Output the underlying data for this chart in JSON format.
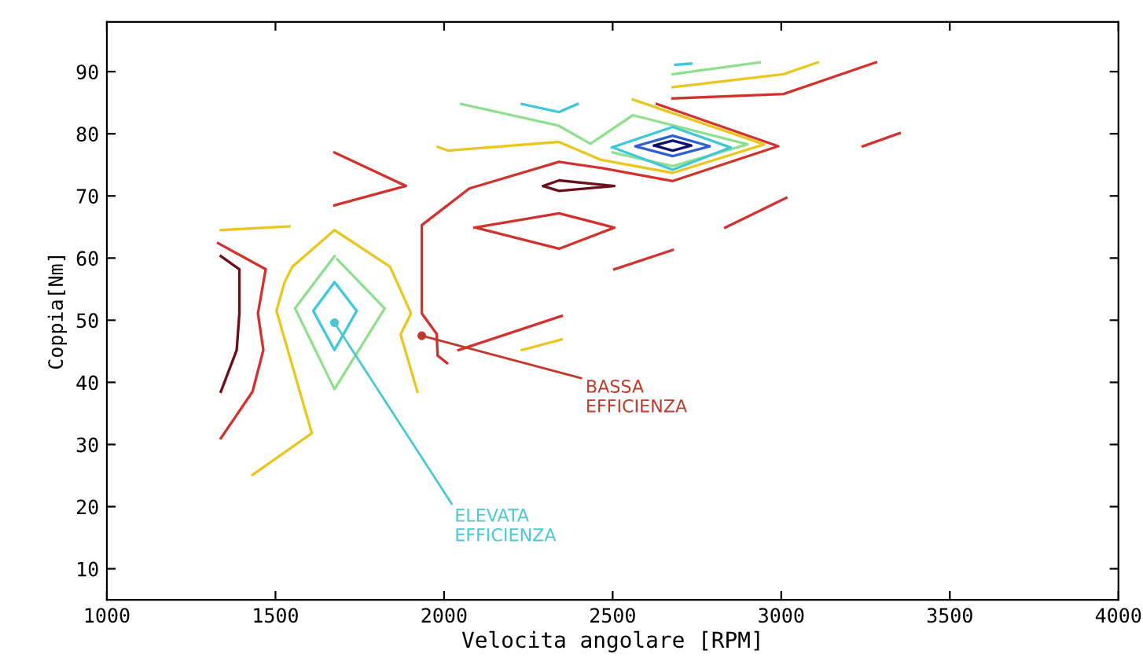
{
  "chart_data": {
    "type": "line",
    "xlabel": "Velocita angolare [RPM]",
    "ylabel": "Coppia[Nm]",
    "xlim": [
      1000,
      4000
    ],
    "ylim": [
      5,
      98
    ],
    "xticks": [
      1000,
      1500,
      2000,
      2500,
      3000,
      3500,
      4000
    ],
    "yticks": [
      10,
      20,
      30,
      40,
      50,
      60,
      70,
      80,
      90
    ],
    "grid": false,
    "marker": "none",
    "line_style": "solid",
    "series": [
      {
        "color": "#d2322d",
        "x": [
          2631,
          2991,
          2678,
          2466,
          2341,
          2075,
          1934,
          1934,
          1978,
          1981,
          2009
        ],
        "values": [
          84.8,
          78,
          72.4,
          74.5,
          75.5,
          71.2,
          65.3,
          51.1,
          47.8,
          44.3,
          43.1
        ]
      },
      {
        "color": "#e8c820",
        "x": [
          1981,
          2011,
          2340,
          2466,
          2678,
          2950,
          2560
        ],
        "values": [
          77.9,
          77.3,
          78.7,
          75.8,
          73.7,
          78.3,
          85.5
        ]
      },
      {
        "color": "#8ee08e",
        "x": [
          2051,
          2340,
          2434,
          2560,
          2900,
          2678,
          2500
        ],
        "values": [
          84.8,
          81.3,
          78.4,
          83,
          78.3,
          74.8,
          77
        ]
      },
      {
        "color": "#40c8d8",
        "x": [
          2498,
          2678,
          2850,
          2678,
          2505
        ],
        "values": [
          77.8,
          81.1,
          77.8,
          74.2,
          77.7
        ]
      },
      {
        "color": "#3060d0",
        "x": [
          2568,
          2678,
          2788,
          2678,
          2573
        ],
        "values": [
          78,
          79.7,
          78,
          76.4,
          77.9
        ]
      },
      {
        "color": "#101070",
        "x": [
          2623,
          2678,
          2733,
          2678,
          2627
        ],
        "values": [
          78.1,
          78.9,
          78.1,
          77.3,
          78.05
        ]
      },
      {
        "color": "#8ee08e",
        "x": [
          2678,
          2936
        ],
        "values": [
          89.6,
          91.5
        ]
      },
      {
        "color": "#e8c820",
        "x": [
          2678,
          3007,
          3109
        ],
        "values": [
          87.5,
          89.6,
          91.5
        ]
      },
      {
        "color": "#d2322d",
        "x": [
          2678,
          3007,
          3281
        ],
        "values": [
          85.7,
          86.4,
          91.5
        ]
      },
      {
        "color": "#40c8d8",
        "x": [
          2686,
          2733
        ],
        "values": [
          91.1,
          91.3
        ]
      },
      {
        "color": "#40c8d8",
        "x": [
          2231,
          2341,
          2396
        ],
        "values": [
          84.8,
          83.5,
          84.8
        ]
      },
      {
        "color": "#d2322d",
        "x": [
          3242,
          3351
        ],
        "values": [
          78,
          80.1
        ]
      },
      {
        "color": "#d2322d",
        "x": [
          2834,
          3015
        ],
        "values": [
          64.9,
          69.7
        ]
      },
      {
        "color": "#d2322d",
        "x": [
          2505,
          2678
        ],
        "values": [
          58.2,
          61.3
        ]
      },
      {
        "color": "#6b0f1a",
        "x": [
          2294,
          2341,
          2505,
          2341,
          2299
        ],
        "values": [
          71.6,
          72.5,
          71.6,
          70.8,
          71.5
        ]
      },
      {
        "color": "#d2322d",
        "x": [
          2090,
          2341,
          2505,
          2341,
          2100
        ],
        "values": [
          64.9,
          67.2,
          64.9,
          61.5,
          64.8
        ]
      },
      {
        "color": "#d2322d",
        "x": [
          1675,
          1887,
          1675
        ],
        "values": [
          77,
          71.6,
          68.5
        ]
      },
      {
        "color": "#e8c820",
        "x": [
          1338,
          1542
        ],
        "values": [
          64.5,
          65.1
        ]
      },
      {
        "color": "#6b0f1a",
        "x": [
          1338,
          1393,
          1393,
          1385,
          1338
        ],
        "values": [
          60.3,
          58.2,
          51.1,
          45.2,
          38.5
        ]
      },
      {
        "color": "#d2322d",
        "x": [
          1330,
          1471,
          1448,
          1464,
          1432,
          1338
        ],
        "values": [
          62.4,
          58.2,
          51.1,
          45.2,
          38.5,
          31
        ]
      },
      {
        "color": "#e8c820",
        "x": [
          1432,
          1608,
          1503,
          1527,
          1550,
          1675,
          1840,
          1902,
          1871,
          1921
        ],
        "values": [
          25.1,
          31.8,
          51.5,
          56.1,
          58.6,
          64.5,
          58.6,
          51.1,
          47.7,
          38.5
        ]
      },
      {
        "color": "#8ee08e",
        "x": [
          1675,
          1558,
          1675,
          1824,
          1683
        ],
        "values": [
          60.3,
          51.9,
          38.9,
          51.9,
          59.8
        ]
      },
      {
        "color": "#40c8d8",
        "x": [
          1675,
          1612,
          1675,
          1741,
          1680
        ],
        "values": [
          56.1,
          51.5,
          45.2,
          51.5,
          55.8
        ]
      },
      {
        "color": "#d2322d",
        "x": [
          2043,
          2349
        ],
        "values": [
          45.2,
          50.7
        ]
      },
      {
        "color": "#e8c820",
        "x": [
          2231,
          2349
        ],
        "values": [
          45.2,
          46.9
        ]
      }
    ],
    "annotations": [
      {
        "text": "BASSA\nEFFICIENZA",
        "x": 1934,
        "y": 47.5
      },
      {
        "text": "ELEVATA\nEFFICIENZA",
        "x": 1675,
        "y": 49.6
      }
    ]
  }
}
